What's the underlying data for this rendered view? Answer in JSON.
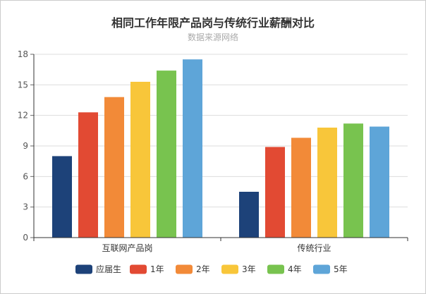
{
  "chart_data": {
    "type": "bar",
    "title": "相同工作年限产品岗与传统行业薪酬对比",
    "subtitle": "数据来源网络",
    "categories": [
      "互联网产品岗",
      "传统行业"
    ],
    "ylim": [
      0,
      18
    ],
    "yticks": [
      0,
      3,
      6,
      9,
      12,
      15,
      18
    ],
    "grid": true,
    "legend_position": "bottom",
    "series": [
      {
        "name": "应届生",
        "color": "#1d4279",
        "values": [
          8.0,
          4.5
        ]
      },
      {
        "name": "1年",
        "color": "#e24a33",
        "values": [
          12.3,
          8.9
        ]
      },
      {
        "name": "2年",
        "color": "#f28a38",
        "values": [
          13.8,
          9.8
        ]
      },
      {
        "name": "3年",
        "color": "#f8c63a",
        "values": [
          15.3,
          10.8
        ]
      },
      {
        "name": "4年",
        "color": "#78c34f",
        "values": [
          16.4,
          11.2
        ]
      },
      {
        "name": "5年",
        "color": "#5ea5d8",
        "values": [
          17.5,
          10.9
        ]
      }
    ]
  }
}
